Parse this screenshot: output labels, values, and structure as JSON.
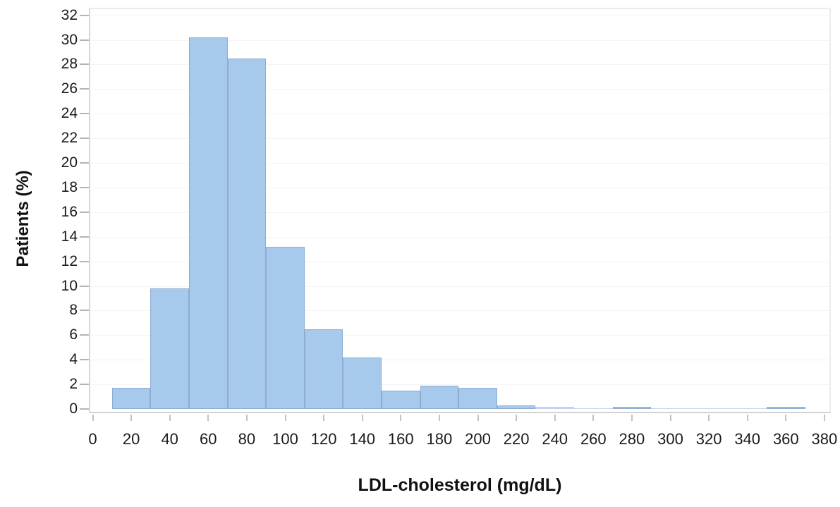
{
  "chart_data": {
    "type": "bar",
    "subtype": "histogram",
    "title": "",
    "xlabel": "LDL-cholesterol (mg/dL)",
    "ylabel": "Patients (%)",
    "bin_width": 20,
    "bin_centers": [
      20,
      40,
      60,
      80,
      100,
      120,
      140,
      160,
      180,
      200,
      220,
      240,
      260,
      280,
      300,
      320,
      340,
      360
    ],
    "values": [
      1.7,
      9.8,
      30.2,
      28.5,
      13.2,
      6.5,
      4.2,
      1.5,
      1.9,
      1.7,
      0.3,
      0.15,
      0.05,
      0.2,
      0.05,
      0.05,
      0.05,
      0.2
    ],
    "x_ticks": [
      0,
      20,
      40,
      60,
      80,
      100,
      120,
      140,
      160,
      180,
      200,
      220,
      240,
      260,
      280,
      300,
      320,
      340,
      360,
      380
    ],
    "y_ticks": [
      0,
      2,
      4,
      6,
      8,
      10,
      12,
      14,
      16,
      18,
      20,
      22,
      24,
      26,
      28,
      30,
      32
    ],
    "xlim": [
      0,
      380
    ],
    "ylim": [
      0,
      32
    ],
    "grid": "faint horizontal gridlines at each y tick",
    "legend": "none"
  },
  "colors": {
    "bar_fill": "#a7c9eb",
    "bar_fill_trace": "#bcd4ef",
    "bar_border": "#8cadd1",
    "gridline": "#f4f4f4",
    "frame_light": "#ebebeb",
    "axis_line": "#d2d2d2",
    "y_tick": "#b5b5b5",
    "x_tick": "#c2c2c2",
    "tick_label": "#1a1a1a",
    "axis_title": "#111111",
    "background": "#ffffff"
  }
}
